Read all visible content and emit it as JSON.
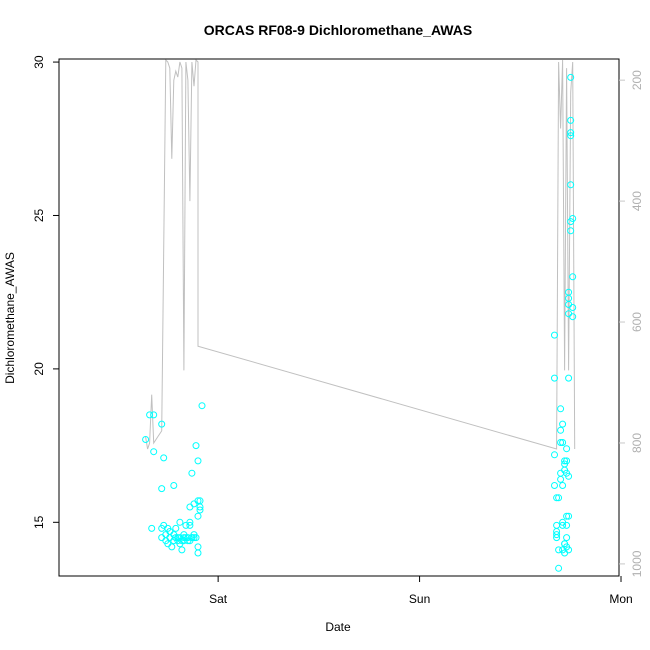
{
  "chart_data": {
    "type": "scatter",
    "title": "ORCAS RF08-9 Dichloromethane_AWAS",
    "xlabel": "Date",
    "ylabel": "Dichloromethane_AWAS",
    "x_tick_labels": [
      "Sat",
      "Sun",
      "Mon"
    ],
    "x_range_days": [
      -0.79,
      1.99
    ],
    "y_left": {
      "range": [
        13.25,
        30.1
      ],
      "ticks": [
        15,
        20,
        25,
        30
      ]
    },
    "y_right": {
      "range": [
        1020,
        165
      ],
      "ticks": [
        200,
        400,
        600,
        800,
        1000
      ],
      "color": "#c8c8c8"
    },
    "colors": {
      "points": "#00ffff",
      "line": "#c0c0c0",
      "axis": "#000000"
    },
    "grid": false,
    "legend": "none",
    "series": [
      {
        "mark": "circle",
        "points": [
          [
            -0.36,
            17.7
          ],
          [
            -0.34,
            18.5
          ],
          [
            -0.33,
            14.8
          ],
          [
            -0.32,
            18.5
          ],
          [
            -0.32,
            17.3
          ],
          [
            -0.28,
            18.2
          ],
          [
            -0.28,
            16.1
          ],
          [
            -0.27,
            17.1
          ],
          [
            -0.28,
            14.8
          ],
          [
            -0.28,
            14.5
          ],
          [
            -0.27,
            14.9
          ],
          [
            -0.26,
            14.6
          ],
          [
            -0.26,
            14.4
          ],
          [
            -0.25,
            14.8
          ],
          [
            -0.25,
            14.3
          ],
          [
            -0.24,
            14.7
          ],
          [
            -0.24,
            14.5
          ],
          [
            -0.23,
            14.2
          ],
          [
            -0.22,
            16.2
          ],
          [
            -0.22,
            14.4
          ],
          [
            -0.22,
            14.6
          ],
          [
            -0.21,
            14.8
          ],
          [
            -0.21,
            14.5
          ],
          [
            -0.2,
            14.5
          ],
          [
            -0.2,
            14.4
          ],
          [
            -0.19,
            14.3
          ],
          [
            -0.19,
            15.0
          ],
          [
            -0.19,
            14.5
          ],
          [
            -0.18,
            14.1
          ],
          [
            -0.18,
            14.4
          ],
          [
            -0.17,
            14.5
          ],
          [
            -0.17,
            14.6
          ],
          [
            -0.17,
            14.4
          ],
          [
            -0.16,
            14.9
          ],
          [
            -0.16,
            14.5
          ],
          [
            -0.15,
            14.4
          ],
          [
            -0.15,
            14.5
          ],
          [
            -0.14,
            15.0
          ],
          [
            -0.14,
            14.9
          ],
          [
            -0.14,
            15.5
          ],
          [
            -0.14,
            14.4
          ],
          [
            -0.13,
            14.5
          ],
          [
            -0.13,
            16.6
          ],
          [
            -0.13,
            14.5
          ],
          [
            -0.12,
            14.5
          ],
          [
            -0.12,
            14.6
          ],
          [
            -0.12,
            15.6
          ],
          [
            -0.11,
            17.5
          ],
          [
            -0.11,
            14.5
          ],
          [
            -0.1,
            17.0
          ],
          [
            -0.1,
            14.2
          ],
          [
            -0.1,
            14.0
          ],
          [
            -0.1,
            15.2
          ],
          [
            -0.1,
            15.7
          ],
          [
            -0.09,
            15.4
          ],
          [
            -0.09,
            15.5
          ],
          [
            -0.09,
            15.7
          ],
          [
            -0.08,
            18.8
          ],
          [
            1.67,
            21.1
          ],
          [
            1.67,
            19.7
          ],
          [
            1.67,
            17.2
          ],
          [
            1.67,
            16.2
          ],
          [
            1.68,
            15.8
          ],
          [
            1.68,
            14.9
          ],
          [
            1.68,
            14.5
          ],
          [
            1.68,
            14.7
          ],
          [
            1.68,
            14.6
          ],
          [
            1.69,
            14.1
          ],
          [
            1.69,
            13.5
          ],
          [
            1.69,
            15.8
          ],
          [
            1.7,
            16.6
          ],
          [
            1.7,
            17.6
          ],
          [
            1.7,
            18.0
          ],
          [
            1.7,
            18.7
          ],
          [
            1.7,
            16.4
          ],
          [
            1.71,
            18.2
          ],
          [
            1.71,
            17.6
          ],
          [
            1.71,
            16.2
          ],
          [
            1.71,
            15.0
          ],
          [
            1.71,
            14.9
          ],
          [
            1.71,
            14.1
          ],
          [
            1.72,
            14.3
          ],
          [
            1.72,
            14.0
          ],
          [
            1.72,
            14.3
          ],
          [
            1.72,
            16.7
          ],
          [
            1.72,
            17.0
          ],
          [
            1.72,
            16.9
          ],
          [
            1.73,
            16.6
          ],
          [
            1.73,
            17.4
          ],
          [
            1.73,
            17.0
          ],
          [
            1.73,
            15.2
          ],
          [
            1.73,
            14.9
          ],
          [
            1.73,
            14.5
          ],
          [
            1.73,
            14.2
          ],
          [
            1.74,
            22.1
          ],
          [
            1.74,
            16.5
          ],
          [
            1.74,
            15.2
          ],
          [
            1.74,
            14.1
          ],
          [
            1.74,
            22.3
          ],
          [
            1.74,
            22.5
          ],
          [
            1.74,
            19.7
          ],
          [
            1.74,
            21.8
          ],
          [
            1.75,
            26.0
          ],
          [
            1.75,
            27.7
          ],
          [
            1.75,
            28.1
          ],
          [
            1.75,
            24.5
          ],
          [
            1.75,
            29.5
          ],
          [
            1.75,
            27.6
          ],
          [
            1.75,
            24.8
          ],
          [
            1.76,
            24.9
          ],
          [
            1.76,
            23.0
          ],
          [
            1.76,
            22.0
          ],
          [
            1.76,
            21.7
          ]
        ]
      },
      {
        "mark": "line",
        "axis": "right",
        "points": [
          [
            -0.36,
            790
          ],
          [
            -0.35,
            810
          ],
          [
            -0.34,
            800
          ],
          [
            -0.33,
            720
          ],
          [
            -0.32,
            800
          ],
          [
            -0.3,
            790
          ],
          [
            -0.28,
            780
          ],
          [
            -0.26,
            165
          ],
          [
            -0.25,
            170
          ],
          [
            -0.24,
            180
          ],
          [
            -0.23,
            330
          ],
          [
            -0.22,
            200
          ],
          [
            -0.21,
            185
          ],
          [
            -0.2,
            195
          ],
          [
            -0.19,
            170
          ],
          [
            -0.18,
            180
          ],
          [
            -0.17,
            680
          ],
          [
            -0.16,
            170
          ],
          [
            -0.15,
            200
          ],
          [
            -0.14,
            400
          ],
          [
            -0.13,
            170
          ],
          [
            -0.12,
            210
          ],
          [
            -0.11,
            165
          ],
          [
            -0.1,
            170
          ],
          [
            -0.1,
            640
          ],
          [
            1.68,
            810
          ],
          [
            1.69,
            170
          ],
          [
            1.7,
            280
          ],
          [
            1.71,
            165
          ],
          [
            1.72,
            680
          ],
          [
            1.73,
            180
          ],
          [
            1.74,
            680
          ],
          [
            1.75,
            220
          ],
          [
            1.76,
            170
          ],
          [
            1.77,
            810
          ]
        ]
      }
    ]
  }
}
